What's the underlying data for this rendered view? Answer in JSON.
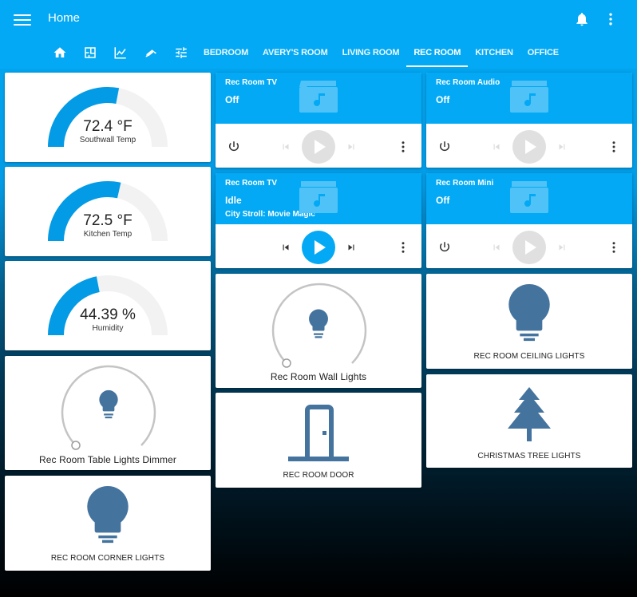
{
  "app": {
    "title": "Home"
  },
  "tabs": {
    "icons": [
      "home-icon",
      "floorplan-icon",
      "chart-icon",
      "security-camera-icon",
      "tune-icon"
    ],
    "labels": [
      "BEDROOM",
      "AVERY'S ROOM",
      "LIVING ROOM",
      "REC ROOM",
      "KITCHEN",
      "OFFICE"
    ],
    "active": "REC ROOM"
  },
  "gauges": [
    {
      "value": "72.4 °F",
      "label": "Southwall Temp",
      "fraction": 0.56
    },
    {
      "value": "72.5 °F",
      "label": "Kitchen Temp",
      "fraction": 0.57
    },
    {
      "value": "44.39 %",
      "label": "Humidity",
      "fraction": 0.44
    }
  ],
  "media_players": [
    {
      "name": "Rec Room TV",
      "state": "Off",
      "media": ""
    },
    {
      "name": "Rec Room Audio",
      "state": "Off",
      "media": ""
    },
    {
      "name": "Rec Room TV",
      "state": "Idle",
      "media": "City Stroll: Movie Magic"
    },
    {
      "name": "Rec Room Mini",
      "state": "Off",
      "media": ""
    }
  ],
  "lights": {
    "table_dimmer": "Rec Room Table Lights Dimmer",
    "wall_lights": "Rec Room Wall Lights",
    "ceiling": "REC ROOM CEILING LIGHTS",
    "christmas": "CHRISTMAS TREE LIGHTS",
    "corner": "REC ROOM CORNER LIGHTS",
    "door": "REC ROOM DOOR"
  },
  "colors": {
    "accent": "#03a9f4",
    "gauge": "#039be5",
    "entity": "#44739e",
    "inactive_ctrl": "#e0e0e0"
  }
}
